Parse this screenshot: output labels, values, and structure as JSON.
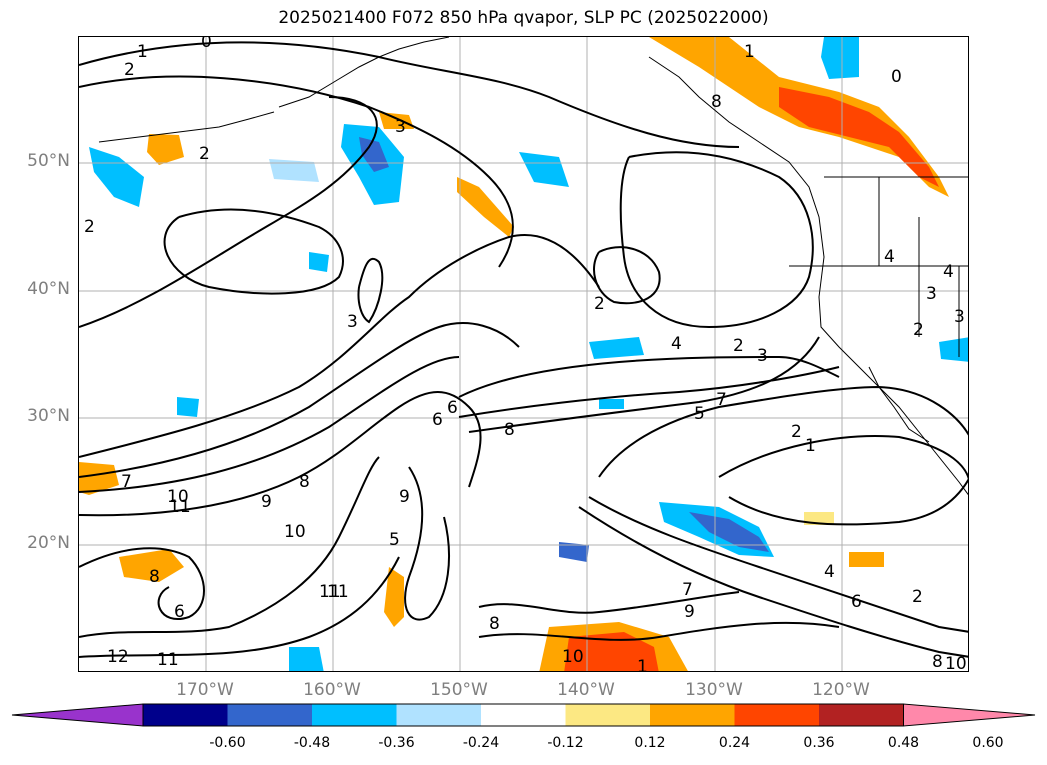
{
  "title": "2025021400 F072 850 hPa qvapor, SLP PC (2025022000)",
  "lat_labels": [
    "50°N",
    "40°N",
    "30°N",
    "20°N"
  ],
  "lon_labels": [
    "170°W",
    "160°W",
    "150°W",
    "140°W",
    "130°W",
    "120°W"
  ],
  "colorbar": {
    "colors": [
      "#9933cc",
      "#00008b",
      "#3366cc",
      "#00bfff",
      "#b0e2ff",
      "#ffffff",
      "#fce883",
      "#ffa500",
      "#ff4500",
      "#b22222",
      "#ff88aa"
    ],
    "tick_labels": [
      "-0.60",
      "-0.48",
      "-0.36",
      "-0.24",
      "-0.12",
      "0.12",
      "0.24",
      "0.36",
      "0.48",
      "0.60"
    ]
  },
  "contour_labels": [
    "1",
    "0",
    "2",
    "2",
    "3",
    "2",
    "3",
    "2",
    "4",
    "2",
    "3",
    "6",
    "8",
    "5",
    "7",
    "2",
    "1",
    "9",
    "10",
    "11",
    "9",
    "8",
    "7",
    "10",
    "11",
    "8",
    "6",
    "12",
    "11",
    "11",
    "5",
    "6",
    "8",
    "7",
    "9",
    "4",
    "6",
    "2",
    "10",
    "1",
    "1",
    "0",
    "8",
    "4",
    "3",
    "4",
    "3",
    "2",
    "8",
    "10"
  ]
}
